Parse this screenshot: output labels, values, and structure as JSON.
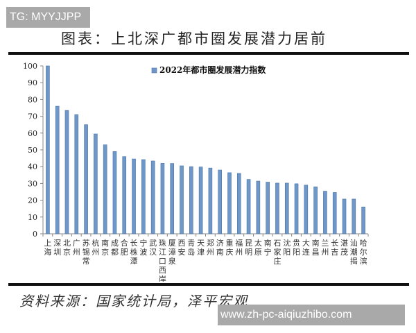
{
  "watermark_top": "TG: MYYJJPP",
  "title": "图表：上北深广都市圈发展潜力居前",
  "source": "资料来源：国家统计局，泽平宏观",
  "watermark_bottom": "www.zh-pc-aiqiuzhibo.com",
  "colors": {
    "bar": "#6f97c7",
    "bar_edge": "#4a74a8",
    "rule": "#111111"
  },
  "chart_data": {
    "type": "bar",
    "title": "图表：上北深广都市圈发展潜力居前",
    "legend": [
      "2022年都市圈发展潜力指数"
    ],
    "legend_position": "top-right",
    "xlabel": "",
    "ylabel": "",
    "ylim": [
      0,
      100
    ],
    "yticks": [
      0,
      10,
      20,
      30,
      40,
      50,
      60,
      70,
      80,
      90,
      100
    ],
    "grid": false,
    "categories": [
      "上海",
      "深圳",
      "北京",
      "广州",
      "苏锡常",
      "杭州",
      "南京",
      "成都",
      "合肥",
      "长株潭",
      "宁波",
      "武汉",
      "珠江口西岸",
      "厦漳泉",
      "西安",
      "青岛",
      "天津",
      "郑州",
      "济南",
      "重庆",
      "福州",
      "昆明",
      "太原",
      "南宁",
      "石家庄",
      "沈阳",
      "贵阳",
      "大连",
      "南昌",
      "兰州",
      "长吉",
      "湛茂",
      "汕潮揭",
      "哈尔滨"
    ],
    "series": [
      {
        "name": "2022年都市圈发展潜力指数",
        "values": [
          100,
          76,
          73.5,
          71,
          65,
          59.5,
          53,
          49,
          46,
          44.6,
          44.2,
          43.4,
          42,
          41.9,
          40.5,
          40,
          39.8,
          39.2,
          38,
          36.4,
          36,
          32.4,
          31.4,
          30.8,
          30.2,
          30.2,
          29.8,
          29,
          28,
          25.4,
          24.6,
          20.7,
          20.7,
          16
        ]
      }
    ]
  }
}
